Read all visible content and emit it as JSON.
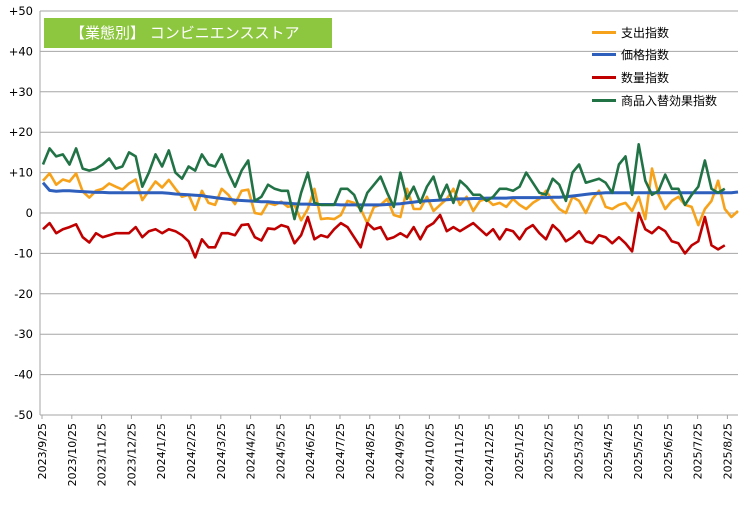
{
  "chart_data": {
    "type": "line",
    "title": "【業態別】 コンビニエンスストア",
    "title_bg_color": "#8dc63f",
    "ylim": [
      -50,
      50
    ],
    "y_ticks": [
      "+50",
      "+40",
      "+30",
      "+20",
      "+10",
      "0",
      "-10",
      "-20",
      "-30",
      "-40",
      "-50"
    ],
    "y_tick_values": [
      50,
      40,
      30,
      20,
      10,
      0,
      -10,
      -20,
      -30,
      -40,
      -50
    ],
    "x_tick_labels": [
      "2023/9/25",
      "2023/10/25",
      "2023/11/25",
      "2023/12/25",
      "2024/1/25",
      "2024/2/25",
      "2024/3/25",
      "2024/4/25",
      "2024/5/25",
      "2024/6/25",
      "2024/7/25",
      "2024/8/25",
      "2024/9/25",
      "2024/10/25",
      "2024/11/25",
      "2024/12/25",
      "2025/1/25",
      "2025/2/25",
      "2025/3/25",
      "2025/4/25",
      "2025/5/25",
      "2025/6/25",
      "2025/7/25",
      "2025/8/25"
    ],
    "grid": true,
    "legend_position": "top-right",
    "series": [
      {
        "name": "支出指数",
        "color": "#f7a21b",
        "values": [
          8,
          9.8,
          7,
          8.3,
          7.8,
          9.8,
          5.3,
          3.8,
          5.5,
          6,
          7.3,
          6.5,
          5.8,
          7.3,
          8.3,
          3.2,
          5.5,
          7.8,
          6.3,
          8.2,
          6,
          4,
          4.5,
          0.8,
          5.5,
          2.5,
          2,
          6,
          4.5,
          2.2,
          5.5,
          5.8,
          0,
          -0.3,
          2.5,
          2,
          2.8,
          1.5,
          2,
          -1.8,
          1,
          6,
          -1.5,
          -1.3,
          -1.5,
          -0.5,
          3,
          2.5,
          1,
          -2.5,
          1.5,
          2,
          3.5,
          -0.5,
          -1,
          6,
          1,
          1,
          4,
          0.5,
          2,
          3.5,
          6,
          2,
          4,
          0.5,
          3,
          3.5,
          2,
          2.5,
          1.5,
          3.5,
          2,
          1,
          2.5,
          3.5,
          5.5,
          3,
          1,
          0,
          4,
          3,
          0,
          3.5,
          5.5,
          1.5,
          1,
          2,
          2.5,
          0.5,
          4,
          -1.5,
          11,
          4.5,
          1,
          3,
          4,
          2,
          1.5,
          -3,
          1,
          3,
          8,
          1,
          -1,
          0.5
        ]
      },
      {
        "name": "価格指数",
        "color": "#2e5fbd",
        "values": [
          7.5,
          5.6,
          5.4,
          5.5,
          5.5,
          5.4,
          5.3,
          5.2,
          5.1,
          5.1,
          5.0,
          5.0,
          5.0,
          5.0,
          5.0,
          5.0,
          5.0,
          5.0,
          5.0,
          4.9,
          4.7,
          4.6,
          4.5,
          4.4,
          4.3,
          4.0,
          3.8,
          3.6,
          3.4,
          3.2,
          3.1,
          3.0,
          2.9,
          2.8,
          2.8,
          2.6,
          2.5,
          2.4,
          2.3,
          2.2,
          2.2,
          2.1,
          2.1,
          2.1,
          2.1,
          2.0,
          2.0,
          2.0,
          2.0,
          2.0,
          2.0,
          2.0,
          2.1,
          2.2,
          2.3,
          2.5,
          2.7,
          2.9,
          3.0,
          3.1,
          3.2,
          3.3,
          3.4,
          3.5,
          3.5,
          3.6,
          3.6,
          3.7,
          3.7,
          3.7,
          3.7,
          3.8,
          3.8,
          3.8,
          3.8,
          3.8,
          3.8,
          3.9,
          3.9,
          4.0,
          4.2,
          4.4,
          4.6,
          4.8,
          4.9,
          5.0,
          5.0,
          5.0,
          5.0,
          5.0,
          5.0,
          5.0,
          5.0,
          5.0,
          5.0,
          5.0,
          5.0,
          5.0,
          5.0,
          5.0,
          5.0,
          5.0,
          5.0,
          5.0,
          5.0,
          5.2
        ]
      },
      {
        "name": "数量指数",
        "color": "#c00000",
        "values": [
          -4,
          -2.5,
          -5,
          -4,
          -3.5,
          -2.8,
          -6,
          -7.3,
          -5,
          -6,
          -5.5,
          -5,
          -5,
          -5,
          -3.5,
          -6,
          -4.5,
          -4,
          -5,
          -4,
          -4.5,
          -5.5,
          -7,
          -11,
          -6.5,
          -8.5,
          -8.5,
          -5,
          -5,
          -5.5,
          -3,
          -2.8,
          -6,
          -6.8,
          -3.8,
          -4,
          -3,
          -3.5,
          -7.5,
          -5.5,
          -1,
          -6.5,
          -5.5,
          -6,
          -4,
          -2.5,
          -3.5,
          -6,
          -8.5,
          -2.5,
          -4,
          -3.5,
          -6.5,
          -6,
          -5,
          -6,
          -3.5,
          -6.5,
          -3.5,
          -2.5,
          -0.5,
          -4.5,
          -3.5,
          -4.5,
          -3.5,
          -2.5,
          -4,
          -5.5,
          -4,
          -6.5,
          -4,
          -4.5,
          -6.5,
          -4,
          -3,
          -5,
          -6.5,
          -3,
          -4.5,
          -7,
          -6,
          -4.5,
          -7,
          -7.5,
          -5.5,
          -6,
          -7.5,
          -6,
          -7.5,
          -9.5,
          0,
          -4,
          -5,
          -3.5,
          -4.5,
          -7,
          -7.5,
          -10,
          -8,
          -7,
          -1,
          -8,
          -9,
          -8
        ]
      },
      {
        "name": "商品入替効果指数",
        "color": "#217346",
        "values": [
          12,
          16,
          14,
          14.5,
          12,
          16,
          11,
          10.5,
          11,
          12,
          13.5,
          11,
          11.5,
          15,
          14,
          6.5,
          10,
          14.5,
          11.5,
          15.5,
          10,
          8.5,
          11.5,
          10.5,
          14.5,
          12,
          11.5,
          14.5,
          10,
          6.5,
          10.5,
          13,
          3,
          4,
          7,
          6,
          5.5,
          5.5,
          -1.5,
          5,
          10,
          2.5,
          2,
          2,
          2,
          6,
          6,
          4.5,
          0.5,
          5,
          7,
          9,
          5,
          1.5,
          10,
          3.5,
          6.5,
          2.5,
          6.5,
          9,
          3.5,
          7,
          2.5,
          8,
          6.5,
          4.5,
          4.5,
          3,
          4,
          6,
          6,
          5.5,
          6.5,
          10,
          7.5,
          5,
          4.5,
          8.5,
          7,
          3,
          10,
          12,
          7.5,
          8,
          8.5,
          7.5,
          5,
          12,
          14,
          4.5,
          17,
          8,
          4.5,
          5.5,
          9.5,
          6,
          6,
          2,
          4.5,
          6.5,
          13,
          6,
          5,
          6
        ]
      }
    ]
  }
}
